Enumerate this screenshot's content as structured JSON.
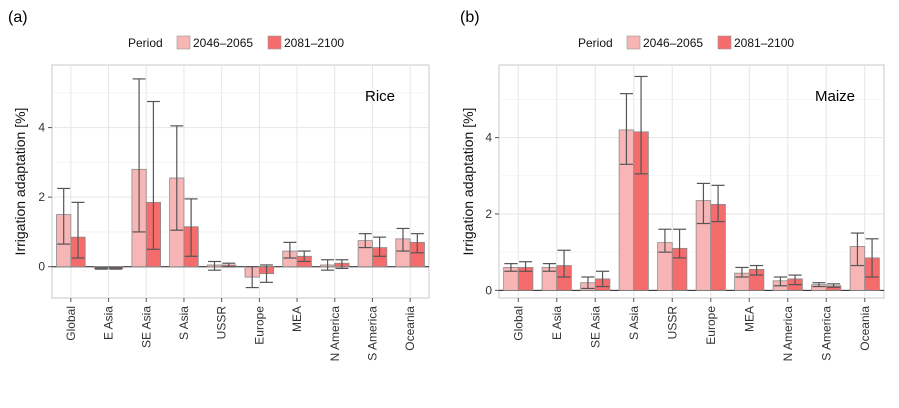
{
  "legend": {
    "title": "Period",
    "entries": [
      "2046–2065",
      "2081–2100"
    ]
  },
  "colors": {
    "period_1": "#f7b5b5",
    "period_2": "#f56c6c"
  },
  "chart_data": [
    {
      "type": "bar",
      "panel": "(a)",
      "crop": "Rice",
      "ylabel": "Irrigation adaptation [%]",
      "xlabel": "",
      "ylim": [
        -0.9,
        5.8
      ],
      "yticks": [
        0,
        2,
        4
      ],
      "grid": true,
      "categories": [
        "Global",
        "E Asia",
        "SE Asia",
        "S Asia",
        "USSR",
        "Europe",
        "MEA",
        "N America",
        "S America",
        "Oceania"
      ],
      "series": [
        {
          "name": "2046–2065",
          "values": [
            1.5,
            -0.05,
            2.8,
            2.55,
            0.05,
            -0.3,
            0.45,
            0.05,
            0.75,
            0.8
          ],
          "err_low": [
            0.65,
            -0.07,
            1.0,
            1.05,
            -0.1,
            -0.6,
            0.25,
            -0.1,
            0.55,
            0.45
          ],
          "err_high": [
            2.25,
            -0.03,
            5.4,
            4.05,
            0.15,
            0.0,
            0.7,
            0.2,
            0.95,
            1.1
          ]
        },
        {
          "name": "2081–2100",
          "values": [
            0.85,
            -0.05,
            1.85,
            1.15,
            0.05,
            -0.2,
            0.3,
            0.1,
            0.55,
            0.7
          ],
          "err_low": [
            0.25,
            -0.07,
            0.5,
            0.3,
            0.0,
            -0.45,
            0.15,
            -0.05,
            0.3,
            0.4
          ],
          "err_high": [
            1.85,
            -0.03,
            4.75,
            1.95,
            0.1,
            0.05,
            0.45,
            0.2,
            0.85,
            0.95
          ]
        }
      ]
    },
    {
      "type": "bar",
      "panel": "(b)",
      "crop": "Maize",
      "ylabel": "Irrigation adaptation [%]",
      "xlabel": "",
      "ylim": [
        -0.2,
        5.9
      ],
      "yticks": [
        0,
        2,
        4
      ],
      "grid": true,
      "categories": [
        "Global",
        "E Asia",
        "SE Asia",
        "S Asia",
        "USSR",
        "Europe",
        "MEA",
        "N America",
        "S America",
        "Oceania"
      ],
      "series": [
        {
          "name": "2046–2065",
          "values": [
            0.6,
            0.6,
            0.2,
            4.2,
            1.25,
            2.35,
            0.45,
            0.25,
            0.15,
            1.15
          ],
          "err_low": [
            0.5,
            0.5,
            0.05,
            3.3,
            1.0,
            1.75,
            0.35,
            0.12,
            0.1,
            0.65
          ],
          "err_high": [
            0.7,
            0.7,
            0.35,
            5.15,
            1.6,
            2.8,
            0.6,
            0.35,
            0.2,
            1.5
          ]
        },
        {
          "name": "2081–2100",
          "values": [
            0.6,
            0.65,
            0.3,
            4.15,
            1.1,
            2.25,
            0.55,
            0.3,
            0.12,
            0.85
          ],
          "err_low": [
            0.5,
            0.35,
            0.1,
            3.05,
            0.85,
            1.8,
            0.4,
            0.15,
            0.08,
            0.35
          ],
          "err_high": [
            0.75,
            1.05,
            0.5,
            5.6,
            1.6,
            2.75,
            0.65,
            0.4,
            0.17,
            1.35
          ]
        }
      ]
    }
  ]
}
